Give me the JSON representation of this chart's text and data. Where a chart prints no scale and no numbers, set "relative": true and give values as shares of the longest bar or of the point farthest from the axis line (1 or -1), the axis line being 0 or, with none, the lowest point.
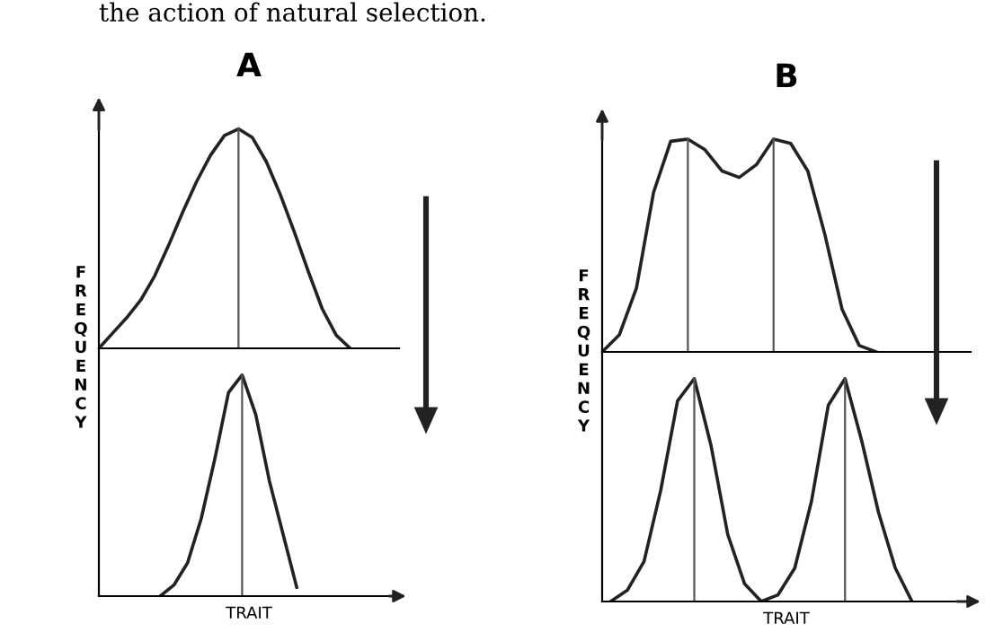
{
  "chart_data": [
    {
      "type": "line",
      "title": "A",
      "ylabel": "FREQUENCY",
      "relative": true,
      "annotations": [
        "the action of natural selection."
      ],
      "categories": [
        null,
        null,
        null,
        null,
        null,
        null,
        null,
        null,
        null,
        null,
        null,
        null,
        null,
        null,
        null,
        null,
        null,
        null,
        null,
        null,
        null
      ],
      "series": [
        {
          "color": "#222222",
          "values": [
            0,
            0.07,
            0.14,
            0.22,
            0.33,
            0.47,
            0.62,
            0.76,
            0.88,
            0.97,
            1.0,
            0.96,
            0.85,
            0.7,
            0.53,
            0.35,
            0.18,
            0.06,
            0,
            null,
            null
          ]
        }
      ]
    },
    {
      "type": "line",
      "xlabel": "TRAIT",
      "relative": true,
      "categories": [
        null,
        null,
        null,
        null,
        null,
        null,
        null,
        null,
        null,
        null,
        null,
        null,
        null,
        null,
        null,
        null,
        null,
        null,
        null,
        null,
        null
      ],
      "series": [
        {
          "color": "#222222",
          "values": [
            null,
            null,
            null,
            null,
            0,
            0.05,
            0.15,
            0.35,
            0.62,
            0.92,
            1.0,
            0.82,
            0.52,
            0.28,
            0.04,
            null,
            null,
            null,
            null,
            null,
            null
          ]
        }
      ]
    },
    {
      "type": "line",
      "title": "B",
      "ylabel": "FREQUENCY",
      "relative": true,
      "categories": [
        null,
        null,
        null,
        null,
        null,
        null,
        null,
        null,
        null,
        null,
        null,
        null,
        null,
        null,
        null,
        null,
        null,
        null,
        null,
        null,
        null
      ],
      "series": [
        {
          "color": "#222222",
          "values": [
            0,
            0.08,
            0.3,
            0.75,
            0.99,
            1.0,
            0.95,
            0.85,
            0.82,
            0.88,
            1.0,
            0.98,
            0.85,
            0.55,
            0.2,
            0.03,
            0,
            null,
            null,
            null,
            null
          ]
        }
      ]
    },
    {
      "type": "line",
      "xlabel": "TRAIT",
      "relative": true,
      "categories": [
        null,
        null,
        null,
        null,
        null,
        null,
        null,
        null,
        null,
        null,
        null,
        null,
        null,
        null,
        null,
        null,
        null,
        null,
        null,
        null,
        null
      ],
      "series": [
        {
          "color": "#222222",
          "values": [
            0,
            0.05,
            0.18,
            0.5,
            0.9,
            1.0,
            0.7,
            0.3,
            0.08,
            0,
            0.03,
            0.15,
            0.45,
            0.88,
            1.0,
            0.72,
            0.4,
            0.15,
            0,
            null,
            null
          ]
        }
      ]
    }
  ]
}
